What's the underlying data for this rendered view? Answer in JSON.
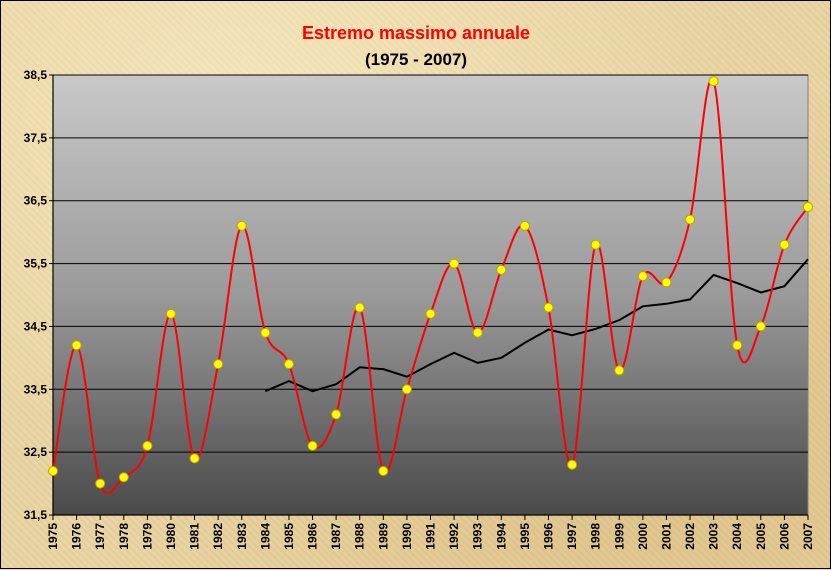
{
  "chart_data": {
    "type": "line",
    "title": "Estremo massimo annuale",
    "subtitle": "(1975 - 2007)",
    "categories": [
      "1975",
      "1976",
      "1977",
      "1978",
      "1979",
      "1980",
      "1981",
      "1982",
      "1983",
      "1984",
      "1985",
      "1986",
      "1987",
      "1988",
      "1989",
      "1990",
      "1991",
      "1992",
      "1993",
      "1994",
      "1995",
      "1996",
      "1997",
      "1998",
      "1999",
      "2000",
      "2001",
      "2002",
      "2003",
      "2004",
      "2005",
      "2006",
      "2007"
    ],
    "ylim": [
      31.5,
      38.5
    ],
    "yticks": [
      "31,5",
      "32,5",
      "33,5",
      "34,5",
      "35,5",
      "36,5",
      "37,5",
      "38,5"
    ],
    "ytick_values": [
      31.5,
      32.5,
      33.5,
      34.5,
      35.5,
      36.5,
      37.5,
      38.5
    ],
    "grid": true,
    "colors": {
      "title": "#ff0000",
      "series_line": "#ff0000",
      "marker_fill": "#ffff00",
      "marker_stroke": "#c8a000",
      "trend_line": "#000000"
    },
    "series": [
      {
        "values": [
          32.2,
          34.2,
          32.0,
          32.1,
          32.6,
          34.7,
          32.4,
          33.9,
          36.1,
          34.4,
          33.9,
          32.6,
          33.1,
          34.8,
          32.2,
          33.5,
          34.7,
          35.5,
          34.4,
          35.4,
          36.1,
          34.8,
          32.3,
          35.8,
          33.8,
          35.3,
          35.2,
          36.2,
          38.4,
          34.2,
          34.5,
          35.8,
          36.4
        ],
        "smooth": true,
        "markers": true
      },
      {
        "values": [
          null,
          null,
          null,
          null,
          null,
          null,
          null,
          null,
          null,
          33.47,
          33.63,
          33.47,
          33.58,
          33.85,
          33.82,
          33.7,
          33.9,
          34.08,
          33.92,
          34.0,
          34.24,
          34.45,
          34.36,
          34.46,
          34.6,
          34.82,
          34.86,
          34.93,
          35.32,
          35.19,
          35.04,
          35.14,
          35.57
        ],
        "smooth": false,
        "markers": false
      }
    ]
  }
}
